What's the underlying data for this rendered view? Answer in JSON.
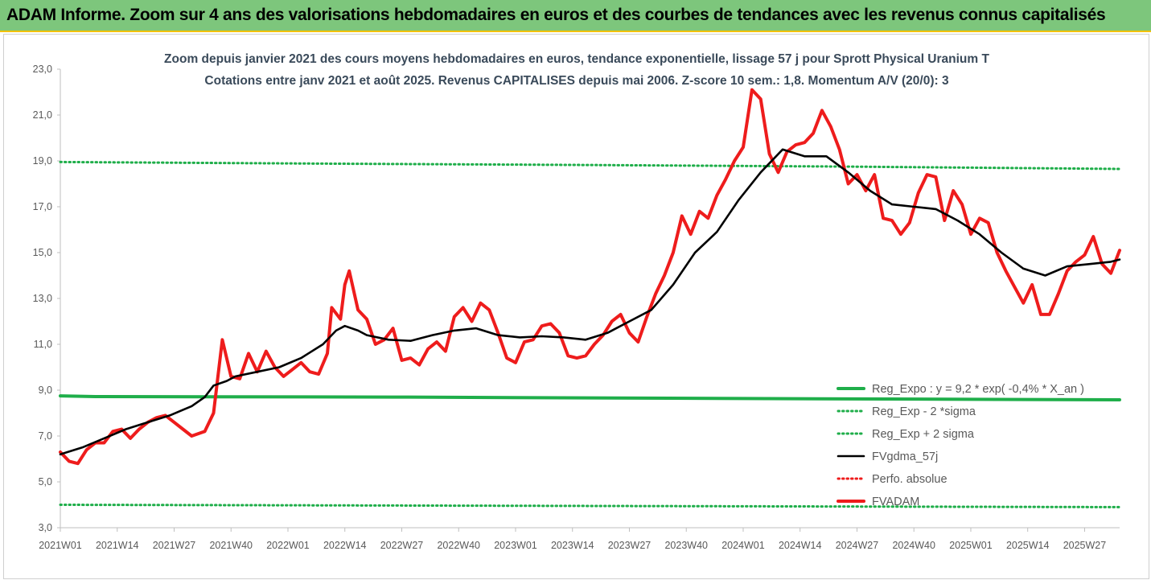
{
  "banner": {
    "title": "ADAM Informe. Zoom sur 4 ans des valorisations hebdomadaires en euros et des courbes de tendances avec les revenus connus capitalisés"
  },
  "colors": {
    "banner_bg": "#7dc67c",
    "reg_expo": "#1fae4a",
    "sigma_lines": "#1fae4a",
    "fvgdma": "#000000",
    "fvadam": "#ee1c1c",
    "perfo": "#ee1c1c"
  },
  "chart_data": {
    "type": "line",
    "title_line1": "Zoom depuis janvier 2021 des cours moyens hebdomadaires en euros, tendance exponentielle, lissage 57 j pour Sprott Physical Uranium T",
    "title_line2": "Cotations entre janv 2021 et août 2025. Revenus CAPITALISES depuis mai 2006. Z-score 10 sem.: 1,8. Momentum A/V (20/0): 3",
    "ylim": [
      3,
      23
    ],
    "yticks": [
      "3,0",
      "5,0",
      "7,0",
      "9,0",
      "11,0",
      "13,0",
      "15,0",
      "17,0",
      "19,0",
      "21,0",
      "23,0"
    ],
    "xtick_labels": [
      "2021W01",
      "2021W14",
      "2021W27",
      "2021W40",
      "2022W01",
      "2022W14",
      "2022W27",
      "2022W40",
      "2023W01",
      "2023W14",
      "2023W27",
      "2023W40",
      "2024W01",
      "2024W14",
      "2024W27",
      "2024W40",
      "2025W01",
      "2025W14",
      "2025W27"
    ],
    "xtick_index": [
      0,
      13,
      26,
      39,
      52,
      65,
      78,
      91,
      104,
      117,
      130,
      143,
      156,
      169,
      182,
      195,
      208,
      221,
      234
    ],
    "n_weeks": 243,
    "grid": false,
    "legend_position": "right",
    "legend": [
      "Reg_Expo : y = 9,2 * exp( -0,4% *  X_an )",
      "Reg_Exp - 2 *sigma",
      "Reg_Exp + 2 sigma",
      "FVgdma_57j",
      "Perfo. absolue",
      "FVADAM"
    ],
    "series": [
      {
        "name": "Reg_Expo : y = 9,2 * exp( -0,4% *  X_an )",
        "style": "solid-thick",
        "x": [
          0,
          8,
          76,
          139,
          208,
          242
        ],
        "values": [
          8.75,
          8.72,
          8.7,
          8.65,
          8.6,
          8.58
        ]
      },
      {
        "name": "Reg_Exp - 2 *sigma",
        "style": "dotted",
        "x": [
          0,
          242
        ],
        "values": [
          4.0,
          3.9
        ]
      },
      {
        "name": "Reg_Exp + 2 sigma",
        "style": "dotted",
        "x": [
          0,
          60,
          120,
          180,
          242
        ],
        "values": [
          18.95,
          18.88,
          18.82,
          18.75,
          18.65
        ]
      },
      {
        "name": "FVgdma_57j",
        "style": "solid",
        "x": [
          0,
          5,
          10,
          15,
          20,
          25,
          30,
          33,
          35,
          38,
          40,
          45,
          50,
          55,
          60,
          63,
          65,
          68,
          70,
          75,
          80,
          85,
          90,
          95,
          100,
          105,
          110,
          115,
          120,
          125,
          130,
          135,
          140,
          145,
          150,
          155,
          160,
          165,
          170,
          175,
          180,
          185,
          190,
          195,
          200,
          205,
          210,
          215,
          220,
          225,
          230,
          235,
          240,
          242
        ],
        "values": [
          6.2,
          6.5,
          6.9,
          7.3,
          7.6,
          7.9,
          8.3,
          8.7,
          9.2,
          9.4,
          9.6,
          9.8,
          10.0,
          10.4,
          11.0,
          11.6,
          11.8,
          11.6,
          11.4,
          11.2,
          11.15,
          11.4,
          11.6,
          11.7,
          11.4,
          11.3,
          11.35,
          11.3,
          11.2,
          11.5,
          12.0,
          12.5,
          13.6,
          15.0,
          15.9,
          17.3,
          18.5,
          19.5,
          19.2,
          19.2,
          18.5,
          17.7,
          17.1,
          17.0,
          16.9,
          16.4,
          15.8,
          15.0,
          14.3,
          14.0,
          14.4,
          14.5,
          14.6,
          14.7
        ]
      },
      {
        "name": "FVADAM",
        "style": "solid-thick",
        "x": [
          0,
          2,
          4,
          6,
          8,
          10,
          12,
          14,
          16,
          18,
          20,
          22,
          24,
          26,
          28,
          30,
          33,
          35,
          37,
          39,
          41,
          43,
          45,
          47,
          49,
          51,
          53,
          55,
          57,
          59,
          61,
          62,
          64,
          65,
          66,
          68,
          70,
          72,
          74,
          76,
          78,
          80,
          82,
          84,
          86,
          88,
          90,
          92,
          94,
          96,
          98,
          100,
          102,
          104,
          106,
          108,
          110,
          112,
          114,
          116,
          118,
          120,
          122,
          124,
          126,
          128,
          130,
          132,
          134,
          136,
          138,
          140,
          142,
          144,
          146,
          148,
          150,
          152,
          154,
          156,
          158,
          160,
          162,
          164,
          166,
          168,
          170,
          172,
          174,
          176,
          178,
          180,
          182,
          184,
          186,
          188,
          190,
          192,
          194,
          196,
          198,
          200,
          202,
          204,
          206,
          208,
          210,
          212,
          214,
          216,
          218,
          220,
          222,
          224,
          226,
          228,
          230,
          232,
          234,
          236,
          238,
          240,
          242
        ],
        "values": [
          6.3,
          5.9,
          5.8,
          6.4,
          6.7,
          6.7,
          7.2,
          7.3,
          6.9,
          7.3,
          7.6,
          7.8,
          7.9,
          7.6,
          7.3,
          7.0,
          7.2,
          8.0,
          11.2,
          9.6,
          9.5,
          10.6,
          9.8,
          10.7,
          10.0,
          9.6,
          9.9,
          10.2,
          9.8,
          9.7,
          10.6,
          12.6,
          12.1,
          13.6,
          14.2,
          12.5,
          12.1,
          11.0,
          11.2,
          11.7,
          10.3,
          10.4,
          10.1,
          10.8,
          11.1,
          10.7,
          12.2,
          12.6,
          12.0,
          12.8,
          12.5,
          11.5,
          10.4,
          10.2,
          11.1,
          11.2,
          11.8,
          11.9,
          11.5,
          10.5,
          10.4,
          10.5,
          11.0,
          11.4,
          12.0,
          12.3,
          11.5,
          11.1,
          12.2,
          13.2,
          14.0,
          15.0,
          16.6,
          15.8,
          16.8,
          16.5,
          17.5,
          18.2,
          19.0,
          19.6,
          22.1,
          21.7,
          19.3,
          18.5,
          19.4,
          19.7,
          19.8,
          20.2,
          21.2,
          20.5,
          19.5,
          18.0,
          18.4,
          17.7,
          18.4,
          16.5,
          16.4,
          15.8,
          16.3,
          17.6,
          18.4,
          18.3,
          16.4,
          17.7,
          17.1,
          15.8,
          16.5,
          16.3,
          15.0,
          14.2,
          13.5,
          12.8,
          13.6,
          12.3,
          12.3,
          13.2,
          14.2,
          14.6,
          14.9,
          15.7,
          14.5,
          14.1,
          15.1
        ]
      }
    ]
  }
}
